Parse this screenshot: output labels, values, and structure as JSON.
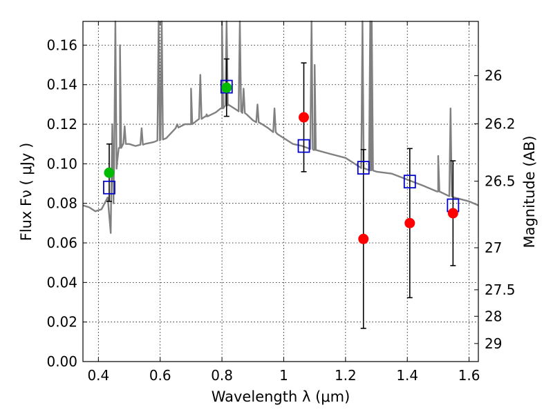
{
  "chart_data": {
    "type": "scatter",
    "title": "",
    "xlabel": "Wavelength  λ (μm)",
    "ylabel": "Flux  Fν  ( μJy )",
    "y2label": "Magnitude (AB)",
    "xlim": [
      0.35,
      1.63
    ],
    "ylim": [
      0.0,
      0.172
    ],
    "grid": true,
    "x_ticks": [
      {
        "value": 0.4,
        "label": "0.4"
      },
      {
        "value": 0.6,
        "label": "0.6"
      },
      {
        "value": 0.8,
        "label": "0.8"
      },
      {
        "value": 1.0,
        "label": "1"
      },
      {
        "value": 1.2,
        "label": "1.2"
      },
      {
        "value": 1.4,
        "label": "1.4"
      },
      {
        "value": 1.6,
        "label": "1.6"
      }
    ],
    "y_ticks": [
      {
        "value": 0.0,
        "label": "0.00"
      },
      {
        "value": 0.02,
        "label": "0.02"
      },
      {
        "value": 0.04,
        "label": "0.04"
      },
      {
        "value": 0.06,
        "label": "0.06"
      },
      {
        "value": 0.08,
        "label": "0.08"
      },
      {
        "value": 0.1,
        "label": "0.10"
      },
      {
        "value": 0.12,
        "label": "0.12"
      },
      {
        "value": 0.14,
        "label": "0.14"
      },
      {
        "value": 0.16,
        "label": "0.16"
      }
    ],
    "y2_ticks": [
      {
        "mag": 26.0,
        "label": "26"
      },
      {
        "mag": 26.2,
        "label": "26.2"
      },
      {
        "mag": 26.5,
        "label": "26.5"
      },
      {
        "mag": 27.0,
        "label": "27"
      },
      {
        "mag": 27.5,
        "label": "27.5"
      },
      {
        "mag": 28.0,
        "label": "28"
      },
      {
        "mag": 29.0,
        "label": "29"
      }
    ],
    "colors": {
      "sed": "#808080",
      "measured_red": "#ff0000",
      "measured_green": "#00bb00",
      "model": "#0000cc",
      "errorbar": "#000000"
    },
    "series": [
      {
        "kind": "line",
        "x": [
          0.35,
          0.37,
          0.39,
          0.41,
          0.43,
          0.44,
          0.45,
          0.46,
          0.47,
          0.48,
          0.5,
          0.52,
          0.55,
          0.58,
          0.6,
          0.62,
          0.65,
          0.68,
          0.7,
          0.72,
          0.75,
          0.78,
          0.8,
          0.82,
          0.85,
          0.88,
          0.9,
          0.93,
          0.95,
          0.98,
          1.0,
          1.03,
          1.06,
          1.1,
          1.15,
          1.2,
          1.25,
          1.3,
          1.35,
          1.4,
          1.45,
          1.5,
          1.55,
          1.6,
          1.63
        ],
        "y": [
          0.079,
          0.078,
          0.076,
          0.077,
          0.083,
          0.065,
          0.095,
          0.1,
          0.108,
          0.11,
          0.11,
          0.109,
          0.11,
          0.111,
          0.112,
          0.113,
          0.118,
          0.12,
          0.12,
          0.122,
          0.124,
          0.126,
          0.128,
          0.13,
          0.127,
          0.125,
          0.122,
          0.12,
          0.118,
          0.115,
          0.113,
          0.11,
          0.109,
          0.107,
          0.105,
          0.103,
          0.098,
          0.096,
          0.095,
          0.092,
          0.089,
          0.086,
          0.083,
          0.081,
          0.079
        ]
      },
      {
        "kind": "line-spikes",
        "x": [
          0.445,
          0.455,
          0.47,
          0.485,
          0.54,
          0.595,
          0.605,
          0.655,
          0.7,
          0.73,
          0.75,
          0.8,
          0.815,
          0.858,
          0.87,
          0.915,
          0.97,
          1.09,
          1.1,
          1.255,
          1.28,
          1.285,
          1.5,
          1.54
        ],
        "y": [
          0.12,
          0.174,
          0.16,
          0.119,
          0.118,
          0.174,
          0.174,
          0.12,
          0.138,
          0.145,
          0.125,
          0.174,
          0.174,
          0.174,
          0.138,
          0.13,
          0.128,
          0.174,
          0.15,
          0.174,
          0.174,
          0.174,
          0.104,
          0.128
        ]
      },
      {
        "kind": "measured",
        "x": [
          0.435,
          0.815,
          1.065,
          1.258,
          1.408,
          1.548
        ],
        "y": [
          0.0955,
          0.1385,
          0.1235,
          0.062,
          0.07,
          0.075
        ],
        "yerr": [
          0.0145,
          0.0145,
          0.0275,
          0.0452,
          0.0377,
          0.0265
        ],
        "colors": [
          "#00bb00",
          "#00bb00",
          "#ff0000",
          "#ff0000",
          "#ff0000",
          "#ff0000"
        ]
      },
      {
        "kind": "model",
        "x": [
          0.435,
          0.815,
          1.065,
          1.258,
          1.408,
          1.548
        ],
        "y": [
          0.088,
          0.139,
          0.109,
          0.098,
          0.091,
          0.079
        ]
      }
    ]
  }
}
